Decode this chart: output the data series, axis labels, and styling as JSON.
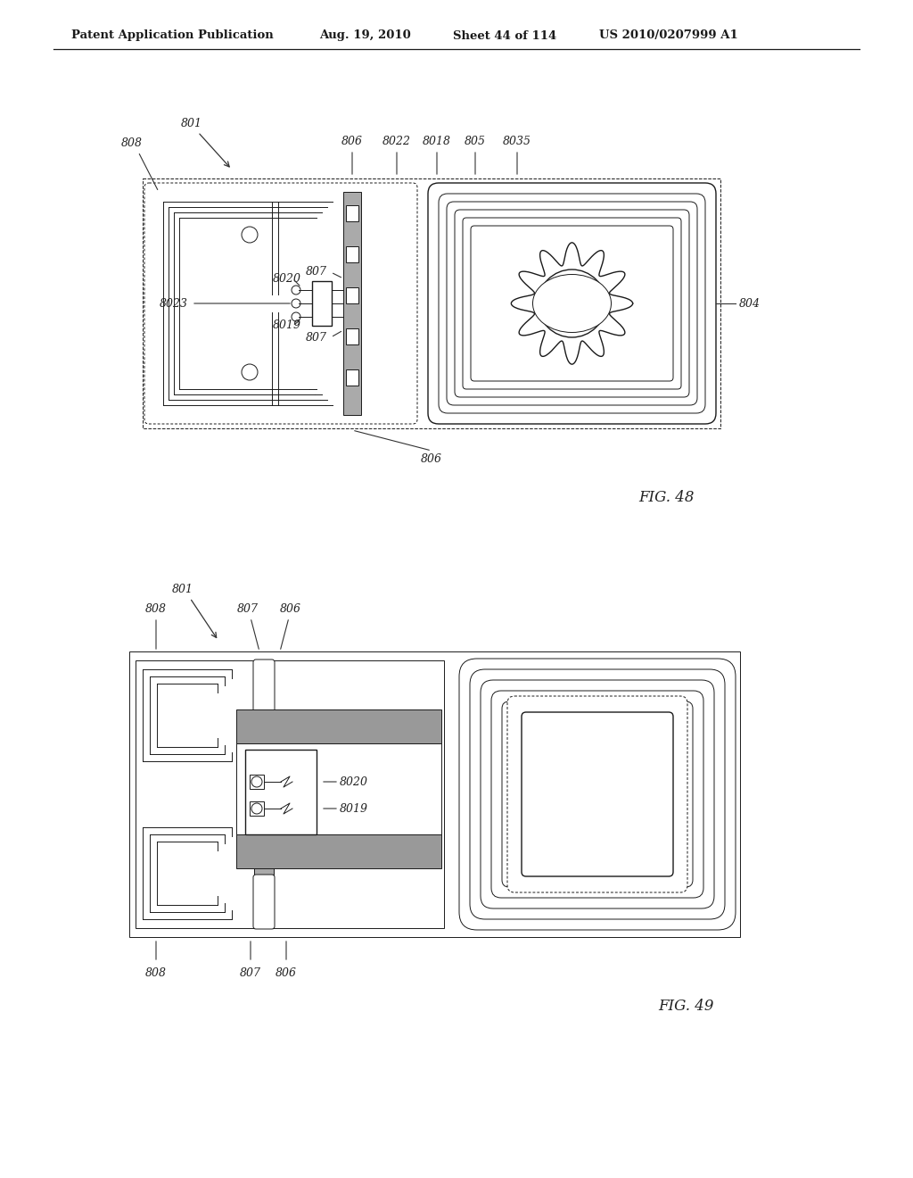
{
  "bg_color": "#ffffff",
  "header_text": "Patent Application Publication",
  "header_date": "Aug. 19, 2010",
  "header_sheet": "Sheet 44 of 114",
  "header_patent": "US 2010/0207999 A1",
  "fig48_label": "FIG. 48",
  "fig49_label": "FIG. 49",
  "lc": "#1a1a1a",
  "gray_med": "#aaaaaa",
  "gray_dark": "#888888",
  "gray_light": "#cccccc"
}
